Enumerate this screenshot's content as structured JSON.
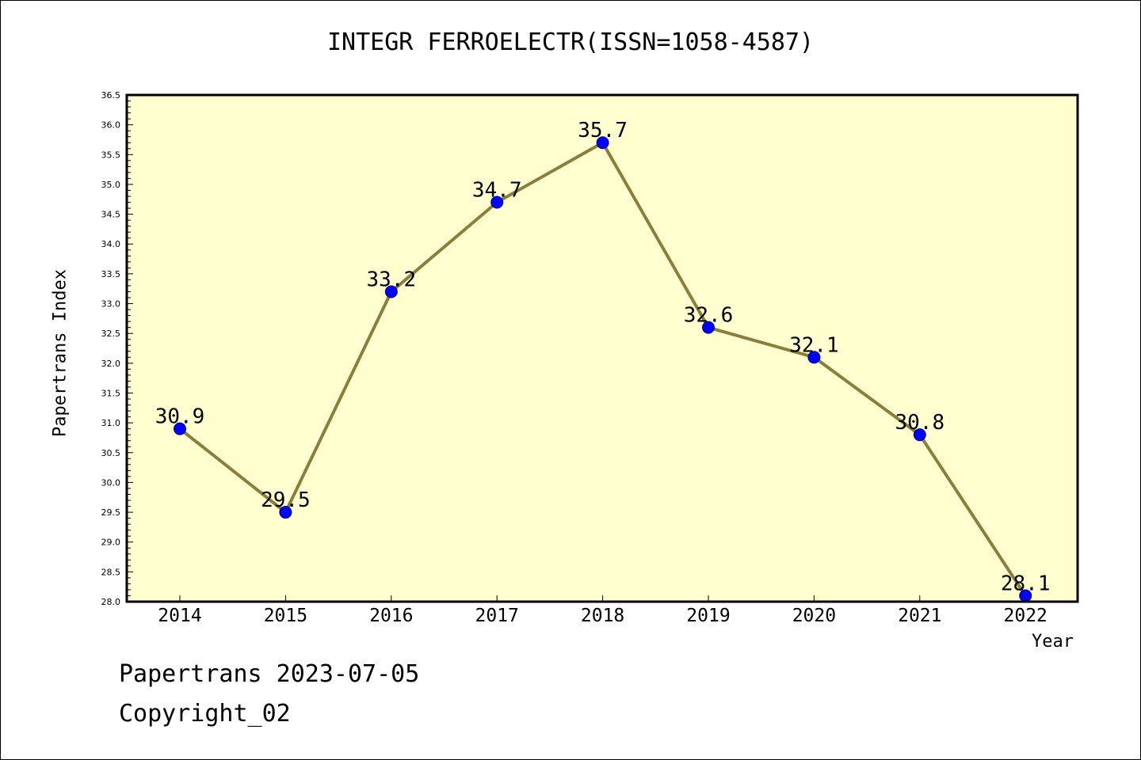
{
  "chart_data": {
    "type": "line",
    "title": "INTEGR FERROELECTR(ISSN=1058-4587)",
    "xlabel": "Year",
    "ylabel": "Papertrans Index",
    "categories": [
      "2014",
      "2015",
      "2016",
      "2017",
      "2018",
      "2019",
      "2020",
      "2021",
      "2022"
    ],
    "series": [
      {
        "values": [
          30.9,
          29.5,
          33.2,
          34.7,
          35.7,
          32.6,
          32.1,
          30.8,
          28.1
        ]
      }
    ],
    "data_labels": [
      "30.9",
      "29.5",
      "33.2",
      "34.7",
      "35.7",
      "32.6",
      "32.1",
      "30.8",
      "28.1"
    ],
    "ylim": [
      28.0,
      36.5
    ],
    "y_ticks": [
      "28.0",
      "28.5",
      "29.0",
      "29.5",
      "30.0",
      "30.5",
      "31.0",
      "31.5",
      "32.0",
      "32.5",
      "33.0",
      "33.5",
      "34.0",
      "34.5",
      "35.0",
      "35.5",
      "36.0",
      "36.5"
    ],
    "grid": false,
    "colors": {
      "plot_background": "#ffffd0",
      "line": "#8b7d3a",
      "marker": "#0000ff"
    }
  },
  "footer": {
    "line1": "Papertrans 2023-07-05",
    "line2": "Copyright_02"
  }
}
